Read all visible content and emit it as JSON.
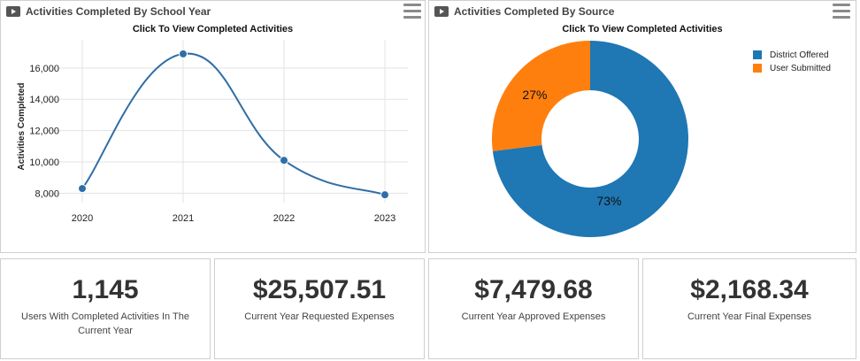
{
  "panels": {
    "year": {
      "title": "Activities Completed By School Year",
      "subtitle": "Click To View Completed Activities"
    },
    "source": {
      "title": "Activities Completed By Source",
      "subtitle": "Click To View Completed Activities"
    }
  },
  "icons": {
    "panel": "video-icon",
    "menu": "hamburger-menu-icon"
  },
  "colors": {
    "line": "#2f6ea6",
    "district": "#1f77b4",
    "user": "#ff7f0e",
    "grid": "#e3e3e3"
  },
  "chart_data": [
    {
      "type": "line",
      "title": "",
      "xlabel": "",
      "ylabel": "Activities Completed",
      "categories": [
        "2020",
        "2021",
        "2022",
        "2023"
      ],
      "values": [
        8300,
        16900,
        10100,
        7900
      ],
      "yticks": [
        8000,
        10000,
        12000,
        14000,
        16000
      ],
      "ytick_labels": [
        "8,000",
        "10,000",
        "12,000",
        "14,000",
        "16,000"
      ],
      "ylim": [
        7400,
        17800
      ],
      "grid": true,
      "smooth": true
    },
    {
      "type": "pie",
      "title": "",
      "donut": true,
      "slices": [
        {
          "label": "District Offered",
          "value": 73,
          "value_label": "73%"
        },
        {
          "label": "User Submitted",
          "value": 27,
          "value_label": "27%"
        }
      ],
      "legend_position": "top-right"
    }
  ],
  "stats": {
    "users": {
      "value": "1,145",
      "label": "Users With Completed Activities In The Current Year"
    },
    "requested": {
      "value": "$25,507.51",
      "label": "Current Year Requested Expenses"
    },
    "approved": {
      "value": "$7,479.68",
      "label": "Current Year Approved Expenses"
    },
    "final": {
      "value": "$2,168.34",
      "label": "Current Year Final Expenses"
    }
  }
}
